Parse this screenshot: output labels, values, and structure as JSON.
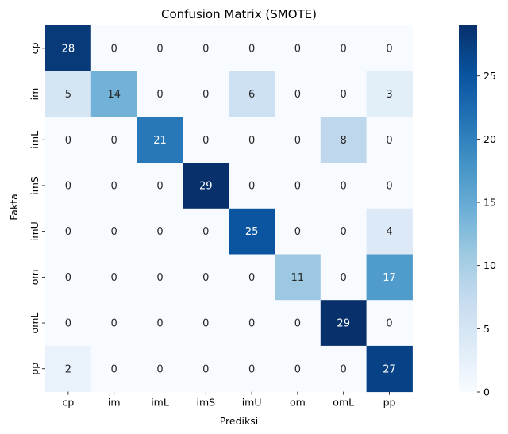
{
  "chart_data": {
    "type": "heatmap",
    "title": "Confusion Matrix (SMOTE)",
    "xlabel": "Prediksi",
    "ylabel": "Fakta",
    "x_categories": [
      "cp",
      "im",
      "imL",
      "imS",
      "imU",
      "om",
      "omL",
      "pp"
    ],
    "y_categories": [
      "cp",
      "im",
      "imL",
      "imS",
      "imU",
      "om",
      "omL",
      "pp"
    ],
    "values": [
      [
        28,
        0,
        0,
        0,
        0,
        0,
        0,
        0
      ],
      [
        5,
        14,
        0,
        0,
        6,
        0,
        0,
        3
      ],
      [
        0,
        0,
        21,
        0,
        0,
        0,
        8,
        0
      ],
      [
        0,
        0,
        0,
        29,
        0,
        0,
        0,
        0
      ],
      [
        0,
        0,
        0,
        0,
        25,
        0,
        0,
        4
      ],
      [
        0,
        0,
        0,
        0,
        0,
        11,
        0,
        17
      ],
      [
        0,
        0,
        0,
        0,
        0,
        0,
        29,
        0
      ],
      [
        2,
        0,
        0,
        0,
        0,
        0,
        0,
        27
      ]
    ],
    "colormap": "Blues",
    "vmin": 0,
    "vmax": 29,
    "colorbar_ticks": [
      0,
      5,
      10,
      15,
      20,
      25
    ]
  }
}
